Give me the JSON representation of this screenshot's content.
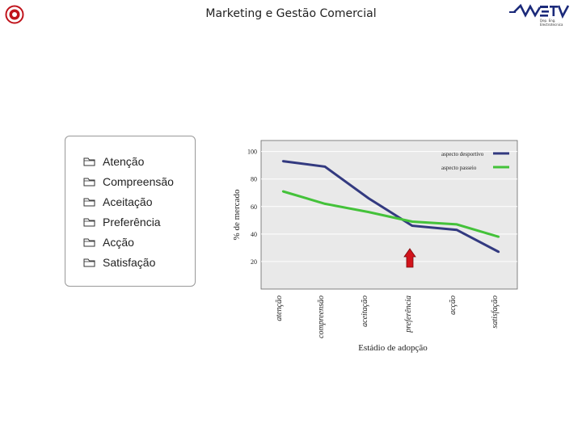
{
  "header": {
    "title": "Marketing e Gestão Comercial",
    "logo_sub_line1": "Dep. Eng.",
    "logo_sub_line2": "Electrotecnica"
  },
  "list": {
    "items": [
      "Atenção",
      "Compreensão",
      "Aceitação",
      "Preferência",
      "Acção",
      "Satisfação"
    ],
    "icon": "folder-icon"
  },
  "chart_data": {
    "type": "line",
    "categories": [
      "atenção",
      "compreensão",
      "aceitação",
      "preferência",
      "acção",
      "satisfação"
    ],
    "series": [
      {
        "name": "aspecto desportivo",
        "values": [
          93,
          89,
          66,
          46,
          43,
          27
        ],
        "color": "#333a80"
      },
      {
        "name": "aspecto passeio",
        "values": [
          71,
          62,
          56,
          49,
          47,
          38
        ],
        "color": "#44c23a"
      }
    ],
    "xlabel": "Estádio de adopção",
    "ylabel": "% de mercado",
    "yticks": [
      20,
      40,
      60,
      80,
      100
    ],
    "ylim": [
      0,
      108
    ],
    "grid": true,
    "legend": "top-right",
    "annotation": {
      "type": "red-up-arrow",
      "category": "preferência"
    },
    "plot_bg": "#e9e9e9"
  }
}
